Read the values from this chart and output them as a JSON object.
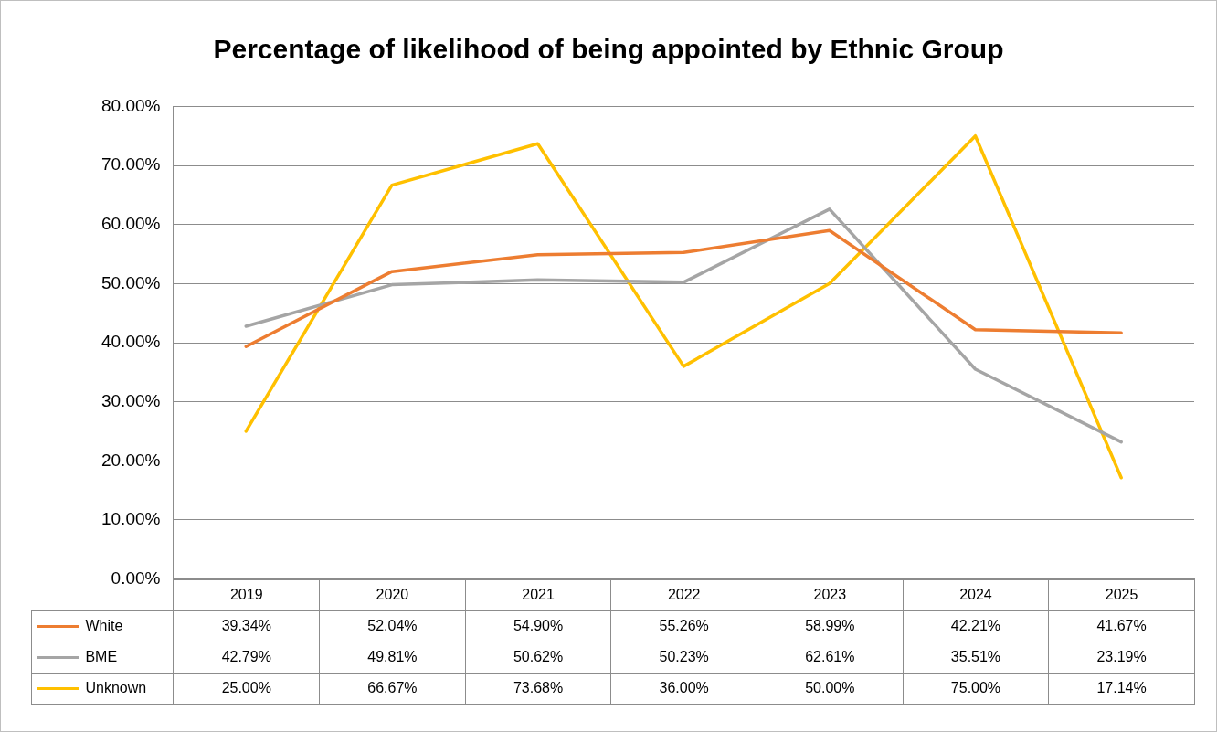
{
  "chart_data": {
    "type": "line",
    "title": "Percentage of likelihood of being appointed by Ethnic Group",
    "categories": [
      "2019",
      "2020",
      "2021",
      "2022",
      "2023",
      "2024",
      "2025"
    ],
    "series": [
      {
        "name": "White",
        "color": "#ed7d31",
        "values": [
          39.34,
          52.04,
          54.9,
          55.26,
          58.99,
          42.21,
          41.67
        ],
        "value_labels": [
          "39.34%",
          "52.04%",
          "54.90%",
          "55.26%",
          "58.99%",
          "42.21%",
          "41.67%"
        ]
      },
      {
        "name": "BME",
        "color": "#a5a5a5",
        "values": [
          42.79,
          49.81,
          50.62,
          50.23,
          62.61,
          35.51,
          23.19
        ],
        "value_labels": [
          "42.79%",
          "49.81%",
          "50.62%",
          "50.23%",
          "62.61%",
          "35.51%",
          "23.19%"
        ]
      },
      {
        "name": "Unknown",
        "color": "#ffc000",
        "values": [
          25.0,
          66.67,
          73.68,
          36.0,
          50.0,
          75.0,
          17.14
        ],
        "value_labels": [
          "25.00%",
          "66.67%",
          "73.68%",
          "36.00%",
          "50.00%",
          "75.00%",
          "17.14%"
        ]
      }
    ],
    "ylim": [
      0,
      80
    ],
    "yticks": [
      {
        "value": 0,
        "label": "0.00%"
      },
      {
        "value": 10,
        "label": "10.00%"
      },
      {
        "value": 20,
        "label": "20.00%"
      },
      {
        "value": 30,
        "label": "30.00%"
      },
      {
        "value": 40,
        "label": "40.00%"
      },
      {
        "value": 50,
        "label": "50.00%"
      },
      {
        "value": 60,
        "label": "60.00%"
      },
      {
        "value": 70,
        "label": "70.00%"
      },
      {
        "value": 80,
        "label": "80.00%"
      }
    ],
    "grid": "y",
    "legend": "bottom",
    "marker": "none",
    "line_style": "solid"
  }
}
